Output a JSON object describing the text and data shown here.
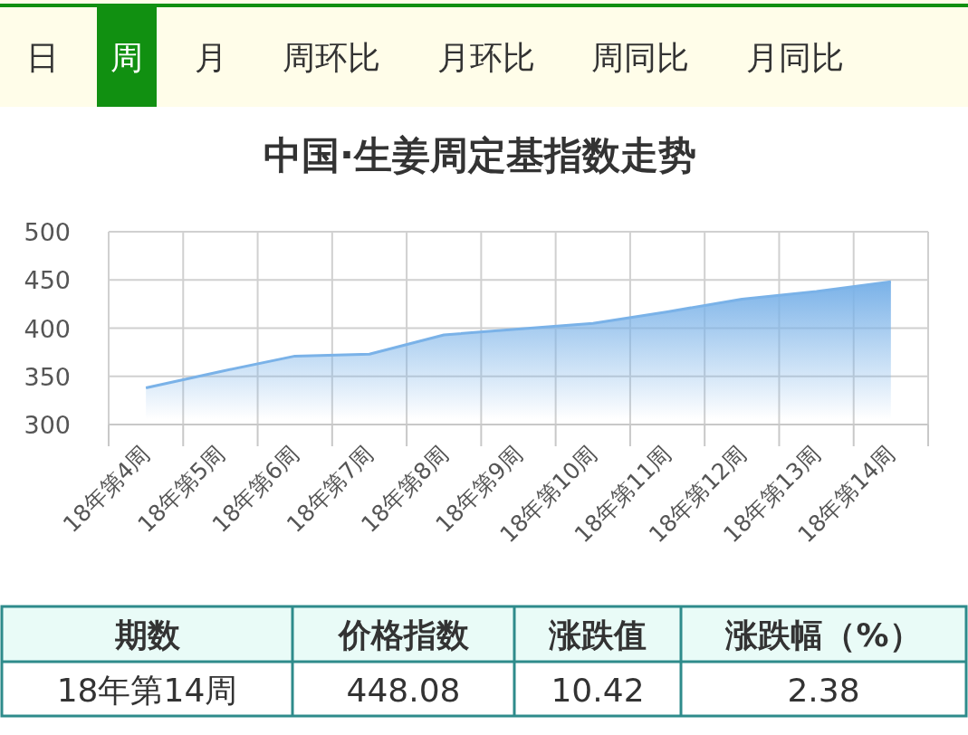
{
  "chart_data": {
    "type": "area",
    "title": "中国·生姜周定基指数走势",
    "categories": [
      "18年第4周",
      "18年第5周",
      "18年第6周",
      "18年第7周",
      "18年第8周",
      "18年第9周",
      "18年第10周",
      "18年第11周",
      "18年第12周",
      "18年第13周",
      "18年第14周"
    ],
    "series": [
      {
        "color": "#7ab2e8",
        "values": [
          338,
          355,
          371,
          373,
          393,
          399,
          405,
          417,
          430,
          438,
          448.08
        ]
      }
    ],
    "ylim": [
      300,
      500
    ],
    "yticks": [
      300,
      350,
      400,
      450,
      500
    ],
    "grid": true,
    "annotations": [
      "日",
      "周",
      "月",
      "周环比",
      "月环比",
      "周同比",
      "月同比",
      "期数",
      "价格指数",
      "涨跌值",
      "涨跌幅（%）",
      "18年第14周",
      "448.08",
      "10.42",
      "2.38"
    ]
  }
}
